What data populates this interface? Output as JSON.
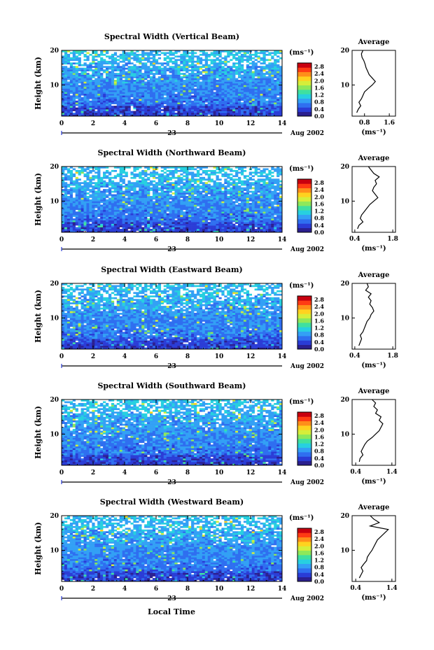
{
  "figure": {
    "bottom_xlabel": "Local Time",
    "date_label": "Aug 2002",
    "day_label": "23",
    "colorbar_unit": "(ms⁻¹)",
    "colorbar_ticks": [
      "0.0",
      "0.4",
      "0.8",
      "1.2",
      "1.6",
      "2.0",
      "2.4",
      "2.8"
    ],
    "colormap": [
      "#2b1f8f",
      "#2a3cd6",
      "#2f6ff0",
      "#33a0f5",
      "#27d0e0",
      "#3fe0a0",
      "#8ee85a",
      "#d6ee3a",
      "#ffd21f",
      "#ff8f1a",
      "#ff3b14",
      "#c8000f"
    ]
  },
  "chart_data": [
    {
      "type": "heatmap",
      "title": "Spectral Width (Vertical Beam)",
      "ylabel": "Height (km)",
      "xlabel": "Local Time",
      "x_ticks": [
        "0",
        "2",
        "4",
        "6",
        "8",
        "10",
        "12",
        "14"
      ],
      "y_ticks": [
        "10",
        "20"
      ],
      "xlim": [
        0,
        14
      ],
      "ylim": [
        1,
        20
      ],
      "colorbar_range": [
        0.0,
        3.0
      ],
      "colorbar_ticks": [
        "0.0",
        "0.4",
        "0.8",
        "1.2",
        "1.6",
        "2.0",
        "2.4",
        "2.8"
      ],
      "average_profile": {
        "title": "Average",
        "xlabel": "(ms⁻¹)",
        "x_ticks": [
          "0.8",
          "1.6"
        ],
        "y_ticks": [
          "10",
          "20"
        ],
        "xlim": [
          0.4,
          1.8
        ],
        "heights": [
          2,
          3,
          4,
          5,
          6,
          7,
          8,
          9,
          10,
          11,
          12,
          13,
          14,
          15,
          16,
          17,
          18,
          19,
          20
        ],
        "values": [
          0.55,
          0.6,
          0.68,
          0.62,
          0.7,
          0.75,
          0.8,
          0.92,
          1.05,
          1.15,
          1.05,
          0.95,
          0.9,
          0.85,
          0.82,
          0.78,
          0.72,
          0.7,
          0.75
        ]
      }
    },
    {
      "type": "heatmap",
      "title": "Spectral Width (Northward Beam)",
      "ylabel": "Height (km)",
      "xlabel": "Local Time",
      "x_ticks": [
        "0",
        "2",
        "4",
        "6",
        "8",
        "10",
        "12",
        "14"
      ],
      "y_ticks": [
        "10",
        "20"
      ],
      "xlim": [
        0,
        14
      ],
      "ylim": [
        1,
        20
      ],
      "colorbar_range": [
        0.0,
        3.0
      ],
      "colorbar_ticks": [
        "0.0",
        "0.4",
        "0.8",
        "1.2",
        "1.6",
        "2.0",
        "2.4",
        "2.8"
      ],
      "average_profile": {
        "title": "Average",
        "xlabel": "(ms⁻¹)",
        "x_ticks": [
          "0.4",
          "1.8"
        ],
        "y_ticks": [
          "10",
          "20"
        ],
        "xlim": [
          0.3,
          1.9
        ],
        "heights": [
          2,
          3,
          4,
          5,
          6,
          7,
          8,
          9,
          10,
          11,
          12,
          13,
          14,
          15,
          16,
          17,
          18,
          19,
          20
        ],
        "values": [
          0.5,
          0.55,
          0.7,
          0.6,
          0.65,
          0.75,
          0.85,
          0.95,
          1.1,
          1.25,
          1.15,
          1.05,
          1.1,
          1.2,
          1.15,
          1.3,
          1.1,
          1.0,
          0.9
        ]
      }
    },
    {
      "type": "heatmap",
      "title": "Spectral Width (Eastward Beam)",
      "ylabel": "Height (km)",
      "xlabel": "Local Time",
      "x_ticks": [
        "0",
        "2",
        "4",
        "6",
        "8",
        "10",
        "12",
        "14"
      ],
      "y_ticks": [
        "10",
        "20"
      ],
      "xlim": [
        0,
        14
      ],
      "ylim": [
        1,
        20
      ],
      "colorbar_range": [
        0.0,
        3.0
      ],
      "colorbar_ticks": [
        "0.0",
        "0.4",
        "0.8",
        "1.2",
        "1.6",
        "2.0",
        "2.4",
        "2.8"
      ],
      "average_profile": {
        "title": "Average",
        "xlabel": "(ms⁻¹)",
        "x_ticks": [
          "0.4",
          "1.8"
        ],
        "y_ticks": [
          "10",
          "20"
        ],
        "xlim": [
          0.3,
          1.9
        ],
        "heights": [
          2,
          3,
          4,
          5,
          6,
          7,
          8,
          9,
          10,
          11,
          12,
          13,
          14,
          15,
          16,
          17,
          18,
          19,
          20
        ],
        "values": [
          0.55,
          0.6,
          0.65,
          0.6,
          0.7,
          0.75,
          0.8,
          0.85,
          0.95,
          1.0,
          1.1,
          1.05,
          0.95,
          1.0,
          0.9,
          1.0,
          0.8,
          0.9,
          0.85
        ]
      }
    },
    {
      "type": "heatmap",
      "title": "Spectral Width (Southward Beam)",
      "ylabel": "Height (km)",
      "xlabel": "Local Time",
      "x_ticks": [
        "0",
        "2",
        "4",
        "6",
        "8",
        "10",
        "12",
        "14"
      ],
      "y_ticks": [
        "10",
        "20"
      ],
      "xlim": [
        0,
        14
      ],
      "ylim": [
        1,
        20
      ],
      "colorbar_range": [
        0.0,
        3.0
      ],
      "colorbar_ticks": [
        "0.0",
        "0.4",
        "0.8",
        "1.2",
        "1.6",
        "2.0",
        "2.4",
        "2.8"
      ],
      "average_profile": {
        "title": "Average",
        "xlabel": "(ms⁻¹)",
        "x_ticks": [
          "0.4",
          "1.4"
        ],
        "y_ticks": [
          "10",
          "20"
        ],
        "xlim": [
          0.3,
          1.5
        ],
        "heights": [
          2,
          3,
          4,
          5,
          6,
          7,
          8,
          9,
          10,
          11,
          12,
          13,
          14,
          15,
          16,
          17,
          18,
          19,
          20
        ],
        "values": [
          0.5,
          0.52,
          0.6,
          0.55,
          0.6,
          0.65,
          0.72,
          0.85,
          0.95,
          1.05,
          1.1,
          1.15,
          1.05,
          1.1,
          0.95,
          1.0,
          0.9,
          0.95,
          0.85
        ]
      }
    },
    {
      "type": "heatmap",
      "title": "Spectral Width (Westward Beam)",
      "ylabel": "Height (km)",
      "xlabel": "Local Time",
      "x_ticks": [
        "0",
        "2",
        "4",
        "6",
        "8",
        "10",
        "12",
        "14"
      ],
      "y_ticks": [
        "10",
        "20"
      ],
      "xlim": [
        0,
        14
      ],
      "ylim": [
        1,
        20
      ],
      "colorbar_range": [
        0.0,
        3.0
      ],
      "colorbar_ticks": [
        "0.0",
        "0.4",
        "0.8",
        "1.2",
        "1.6",
        "2.0",
        "2.4",
        "2.8"
      ],
      "average_profile": {
        "title": "Average",
        "xlabel": "(ms⁻¹)",
        "x_ticks": [
          "0.4",
          "1.4"
        ],
        "y_ticks": [
          "10",
          "20"
        ],
        "xlim": [
          0.3,
          1.5
        ],
        "heights": [
          2,
          3,
          4,
          5,
          6,
          7,
          8,
          9,
          10,
          11,
          12,
          13,
          14,
          15,
          16,
          17,
          18,
          19,
          20
        ],
        "values": [
          0.5,
          0.55,
          0.6,
          0.55,
          0.62,
          0.7,
          0.72,
          0.78,
          0.85,
          0.9,
          0.95,
          1.0,
          1.1,
          1.2,
          1.3,
          0.8,
          1.05,
          0.9,
          0.8
        ]
      }
    }
  ]
}
